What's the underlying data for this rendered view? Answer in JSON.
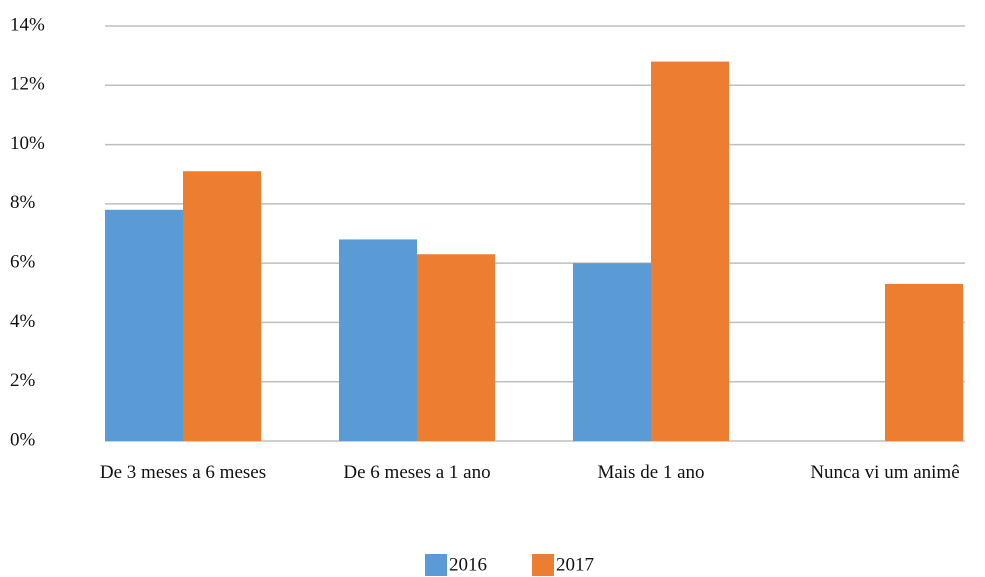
{
  "chart_data": {
    "type": "bar",
    "categories": [
      "De 3 meses a 6 meses",
      "De 6 meses a 1 ano",
      "Mais de 1 ano",
      "Nunca vi um animê"
    ],
    "series": [
      {
        "name": "2016",
        "color": "#5b9bd5",
        "values": [
          7.8,
          6.8,
          6.0,
          null
        ]
      },
      {
        "name": "2017",
        "color": "#ed7d31",
        "values": [
          9.1,
          6.3,
          12.8,
          5.3
        ]
      }
    ],
    "ylim": [
      0,
      14
    ],
    "yticks": [
      {
        "value": 0,
        "label": "0%"
      },
      {
        "value": 2,
        "label": "2%"
      },
      {
        "value": 4,
        "label": "4%"
      },
      {
        "value": 6,
        "label": "6%"
      },
      {
        "value": 8,
        "label": "8%"
      },
      {
        "value": 10,
        "label": "10%"
      },
      {
        "value": 12,
        "label": "12%"
      },
      {
        "value": 14,
        "label": "14%"
      }
    ],
    "grid": true,
    "legend": "bottom"
  }
}
